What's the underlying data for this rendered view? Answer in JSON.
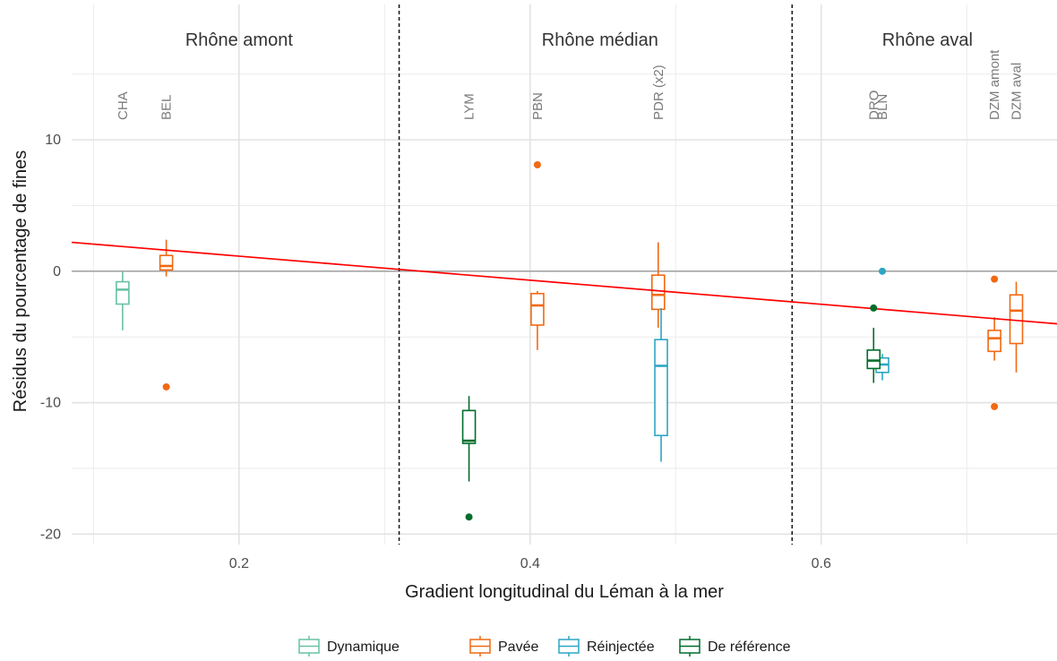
{
  "chart_data": {
    "type": "box",
    "xlabel": "Gradient longitudinal du Léman à la mer",
    "ylabel": "Résidus du pourcentage de fines",
    "xlim": [
      0.085,
      0.762
    ],
    "ylim": [
      -20.8,
      20.3
    ],
    "x_ticks": [
      0.2,
      0.4,
      0.6
    ],
    "x_tick_labels": [
      "0.2",
      "0.4",
      "0.6"
    ],
    "y_ticks": [
      -20,
      -10,
      0,
      10
    ],
    "y_tick_labels": [
      "-20",
      "-10",
      "0",
      "10"
    ],
    "grid": true,
    "zero_line": 0,
    "zones": [
      {
        "label": "Rhône amont",
        "x": 0.2
      },
      {
        "label": "Rhône médian",
        "x": 0.448
      },
      {
        "label": "Rhône aval",
        "x": 0.673
      }
    ],
    "zone_boundaries": [
      0.31,
      0.58
    ],
    "site_labels": [
      {
        "label": "CHA",
        "x": 0.12
      },
      {
        "label": "BEL",
        "x": 0.15
      },
      {
        "label": "LYM",
        "x": 0.358
      },
      {
        "label": "PBN",
        "x": 0.405
      },
      {
        "label": "PDR (x2)",
        "x": 0.488
      },
      {
        "label": "DRO",
        "x": 0.636
      },
      {
        "label": "BLN",
        "x": 0.642
      },
      {
        "label": "DZM amont",
        "x": 0.719
      },
      {
        "label": "DZM aval",
        "x": 0.734
      }
    ],
    "regression_line": {
      "color": "#ff0000",
      "x": [
        0.085,
        0.762
      ],
      "y": [
        2.2,
        -4.0
      ]
    },
    "legend": {
      "position": "bottom",
      "items": [
        {
          "name": "Dynamique",
          "color": "#66c2a5"
        },
        {
          "name": "Pavée",
          "color": "#f16913"
        },
        {
          "name": "Réinjectée",
          "color": "#2ca6c4"
        },
        {
          "name": "De référence",
          "color": "#006d2c"
        }
      ]
    },
    "series": [
      {
        "name": "Dynamique",
        "color": "#66c2a5",
        "boxes": [
          {
            "x": 0.12,
            "min": -4.5,
            "q1": -2.5,
            "median": -1.4,
            "q3": -0.8,
            "max": 0.0,
            "outliers": []
          }
        ]
      },
      {
        "name": "Pavée",
        "color": "#f16913",
        "boxes": [
          {
            "x": 0.15,
            "min": -0.4,
            "q1": 0.1,
            "median": 0.4,
            "q3": 1.2,
            "max": 2.4,
            "outliers": [
              -8.8
            ]
          },
          {
            "x": 0.405,
            "min": -6.0,
            "q1": -4.1,
            "median": -2.6,
            "q3": -1.7,
            "max": -1.5,
            "outliers": [
              8.1
            ]
          },
          {
            "x": 0.488,
            "min": -4.3,
            "q1": -2.9,
            "median": -1.8,
            "q3": -0.3,
            "max": 2.2,
            "outliers": []
          },
          {
            "x": 0.719,
            "min": -6.8,
            "q1": -6.1,
            "median": -5.1,
            "q3": -4.5,
            "max": -3.5,
            "outliers": [
              -0.6,
              -10.3
            ]
          },
          {
            "x": 0.734,
            "min": -7.7,
            "q1": -5.5,
            "median": -3.0,
            "q3": -1.8,
            "max": -0.8,
            "outliers": []
          }
        ]
      },
      {
        "name": "Réinjectée",
        "color": "#2ca6c4",
        "boxes": [
          {
            "x": 0.49,
            "min": -14.5,
            "q1": -12.5,
            "median": -7.2,
            "q3": -5.2,
            "max": -2.8,
            "outliers": []
          },
          {
            "x": 0.642,
            "min": -8.3,
            "q1": -7.7,
            "median": -7.1,
            "q3": -6.6,
            "max": -6.3,
            "outliers": [
              0.0
            ]
          }
        ]
      },
      {
        "name": "De référence",
        "color": "#006d2c",
        "boxes": [
          {
            "x": 0.358,
            "min": -16.0,
            "q1": -13.1,
            "median": -12.9,
            "q3": -10.6,
            "max": -9.5,
            "outliers": [
              -18.7
            ]
          },
          {
            "x": 0.636,
            "min": -8.5,
            "q1": -7.4,
            "median": -6.8,
            "q3": -6.0,
            "max": -4.3,
            "outliers": [
              -2.8
            ]
          }
        ]
      }
    ]
  }
}
